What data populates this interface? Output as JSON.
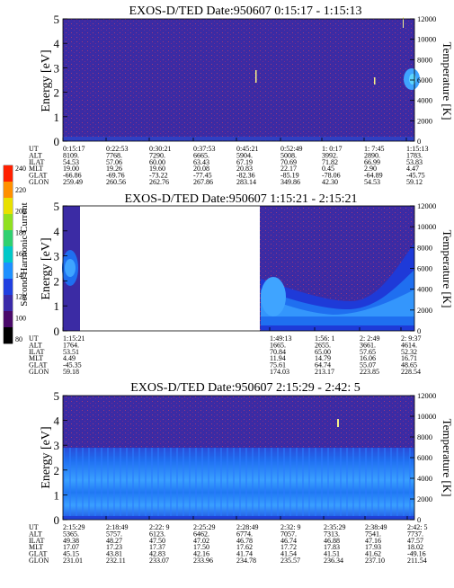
{
  "colors": {
    "background": "#3b2ba4",
    "band_dark": "#1e3ad8",
    "band_mid": "#1f6ff0",
    "band_bright": "#3fa4ff",
    "speckle": "#9a3a7a",
    "hot": "#f5f08a",
    "gap": "#ffffff"
  },
  "colorbar": {
    "label": "Second Harmonic Current",
    "ticks": [
      "240",
      "220",
      "200",
      "180",
      "160",
      "140",
      "120",
      "100",
      "80"
    ],
    "colors": [
      "#000000",
      "#4a0a6a",
      "#3a2aa8",
      "#2040e0",
      "#1e90ff",
      "#00c8c8",
      "#30d070",
      "#90e020",
      "#e8e000",
      "#ff9000",
      "#ff2000"
    ]
  },
  "panels": [
    {
      "title": "EXOS-D/TED   Date:950607  0:15:17 - 1:15:13",
      "ylabel": "Energy [eV]",
      "y2label": "Temperature [K]",
      "yticks": [
        "5",
        "4",
        "3",
        "2",
        "1",
        "0"
      ],
      "y2ticks": [
        "12000",
        "10000",
        "8000",
        "6000",
        "4000",
        "2000",
        "0"
      ],
      "row_labels": [
        "UT",
        "ALT",
        "ILAT",
        "MLT",
        "GLAT",
        "GLON"
      ],
      "columns": [
        [
          "0:15:17",
          "8109.",
          "54.53",
          "19.00",
          "-66.86",
          "259.49"
        ],
        [
          "0:22:53",
          "7768.",
          "57.06",
          "19.26",
          "-69.76",
          "260.56"
        ],
        [
          "0:30:21",
          "7290.",
          "60.00",
          "19.60",
          "-73.22",
          "262.76"
        ],
        [
          "0:37:53",
          "6665.",
          "63.43",
          "20.08",
          "-77.45",
          "267.86"
        ],
        [
          "0:45:21",
          "5904.",
          "67.19",
          "20.83",
          "-82.36",
          "283.14"
        ],
        [
          "0:52:49",
          "5008.",
          "70.69",
          "22.17",
          "-85.19",
          "349.86"
        ],
        [
          "1: 0:17",
          "3992.",
          "71.82",
          "0.45",
          "-78.06",
          "42.30"
        ],
        [
          "1: 7:45",
          "2890.",
          "66.99",
          "2.90",
          "-64.89",
          "54.53"
        ],
        [
          "1:15:13",
          "1783.",
          "53.83",
          "4.47",
          "-45.75",
          "59.12"
        ]
      ]
    },
    {
      "title": "EXOS-D/TED   Date:950607  1:15:21 - 2:15:21",
      "ylabel": "Energy [eV]",
      "y2label": "Temperature [K]",
      "yticks": [
        "5",
        "4",
        "3",
        "2",
        "1",
        "0"
      ],
      "y2ticks": [
        "12000",
        "10000",
        "8000",
        "6000",
        "4000",
        "2000",
        "0"
      ],
      "row_labels": [
        "UT",
        "ALT",
        "ILAT",
        "MLT",
        "GLAT",
        "GLON"
      ],
      "columns": [
        [
          "1:15:21",
          "1764.",
          "53.51",
          "4.49",
          "-45.35",
          "59.18"
        ],
        [
          "1:49:13",
          "1665.",
          "70.84",
          "11.94",
          "75.61",
          "174.03"
        ],
        [
          "1:56: 1",
          "2655.",
          "65.00",
          "14.79",
          "64.74",
          "213.17"
        ],
        [
          "2: 2:49",
          "3661.",
          "57.65",
          "16.06",
          "55.07",
          "223.85"
        ],
        [
          "2: 9:37",
          "4614.",
          "52.32",
          "16.71",
          "48.65",
          "228.54"
        ]
      ]
    },
    {
      "title": "EXOS-D/TED   Date:950607  2:15:29 - 2:42: 5",
      "ylabel": "Energy [eV]",
      "y2label": "Temperature [K]",
      "yticks": [
        "5",
        "4",
        "3",
        "2",
        "1",
        "0"
      ],
      "y2ticks": [
        "12000",
        "10000",
        "8000",
        "6000",
        "4000",
        "2000",
        "0"
      ],
      "row_labels": [
        "UT",
        "ALT",
        "ILAT",
        "MLT",
        "GLAT",
        "GLON"
      ],
      "columns": [
        [
          "2:15:29",
          "5365.",
          "49.38",
          "17.07",
          "45.15",
          "231.01"
        ],
        [
          "2:18:49",
          "5757.",
          "48.27",
          "17.23",
          "43.81",
          "232.11"
        ],
        [
          "2:22: 9",
          "6123.",
          "47.50",
          "17.37",
          "42.83",
          "233.07"
        ],
        [
          "2:25:29",
          "6462.",
          "47.02",
          "17.50",
          "42.16",
          "233.96"
        ],
        [
          "2:28:49",
          "6774.",
          "46.78",
          "17.62",
          "41.74",
          "234.78"
        ],
        [
          "2:32: 9",
          "7057.",
          "46.74",
          "17.72",
          "41.54",
          "235.57"
        ],
        [
          "2:35:29",
          "7313.",
          "46.88",
          "17.83",
          "41.51",
          "236.34"
        ],
        [
          "2:38:49",
          "7541.",
          "47.16",
          "17.93",
          "41.62",
          "237.10"
        ],
        [
          "2:42: 5",
          "7737.",
          "47.57",
          "18.02",
          "-49.16",
          "211.54"
        ]
      ]
    }
  ],
  "chart_data": [
    {
      "type": "heatmap",
      "title": "EXOS-D/TED   Date:950607  0:15:17 - 1:15:13",
      "xlabel": "UT",
      "ylabel": "Energy [eV]",
      "y2label": "Temperature [K]",
      "ylim": [
        0,
        5
      ],
      "y2lim": [
        0,
        12000
      ],
      "x": [
        "0:15:17",
        "0:22:53",
        "0:30:21",
        "0:37:53",
        "0:45:21",
        "0:52:49",
        "1: 0:17",
        "1: 7:45",
        "1:15:13"
      ],
      "data_gap": null
    },
    {
      "type": "heatmap",
      "title": "EXOS-D/TED   Date:950607  1:15:21 - 2:15:21",
      "xlabel": "UT",
      "ylabel": "Energy [eV]",
      "y2label": "Temperature [K]",
      "ylim": [
        0,
        5
      ],
      "y2lim": [
        0,
        12000
      ],
      "x": [
        "1:15:21",
        "1:49:13",
        "1:56: 1",
        "2: 2:49",
        "2: 9:37"
      ],
      "data_gap": [
        "1:15:21",
        "1:49:13"
      ]
    },
    {
      "type": "heatmap",
      "title": "EXOS-D/TED   Date:950607  2:15:29 - 2:42: 5",
      "xlabel": "UT",
      "ylabel": "Energy [eV]",
      "y2label": "Temperature [K]",
      "ylim": [
        0,
        5
      ],
      "y2lim": [
        0,
        12000
      ],
      "x": [
        "2:15:29",
        "2:18:49",
        "2:22: 9",
        "2:25:29",
        "2:28:49",
        "2:32: 9",
        "2:35:29",
        "2:38:49",
        "2:42: 5"
      ],
      "data_gap": null
    }
  ]
}
